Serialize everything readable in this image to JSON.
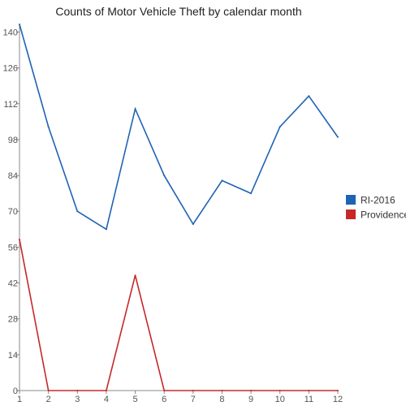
{
  "chart_data": {
    "type": "line",
    "title": "Counts of Motor Vehicle Theft by calendar month",
    "xlabel": "",
    "ylabel": "",
    "x": [
      1,
      2,
      3,
      4,
      5,
      6,
      7,
      8,
      9,
      10,
      11,
      12
    ],
    "xlim": [
      1,
      12
    ],
    "ylim": [
      0,
      143
    ],
    "yticks": [
      0,
      14,
      28,
      42,
      56,
      70,
      84,
      98,
      112,
      126,
      140
    ],
    "grid": false,
    "legend_position": "right",
    "series": [
      {
        "name": "RI-2016",
        "color": "#1f63b5",
        "values": [
          143,
          103,
          70,
          63,
          110,
          84,
          65,
          82,
          77,
          103,
          115,
          99
        ]
      },
      {
        "name": "Providence",
        "color": "#c62828",
        "values": [
          59,
          0,
          0,
          0,
          45,
          0,
          0,
          0,
          0,
          0,
          0,
          0
        ]
      }
    ]
  }
}
